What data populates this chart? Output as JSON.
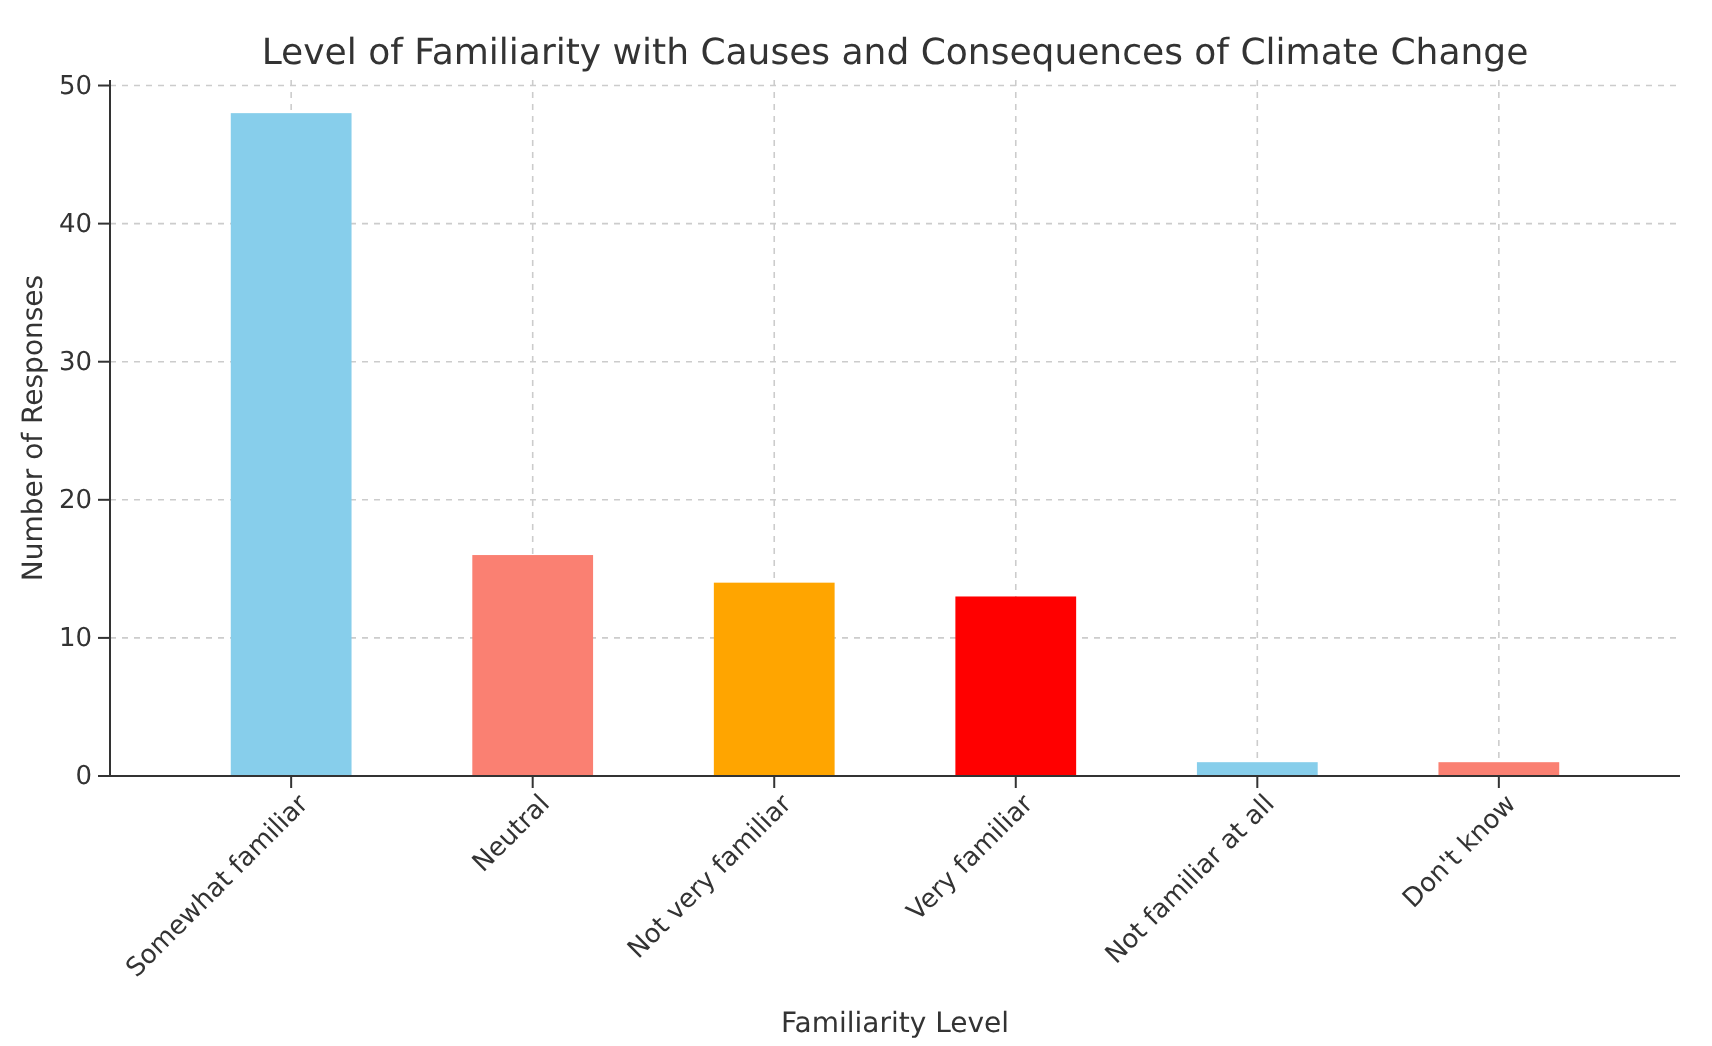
{
  "chart_data": {
    "type": "bar",
    "title": "Level of Familiarity with Causes and Consequences of Climate Change",
    "xlabel": "Familiarity Level",
    "ylabel": "Number of Responses",
    "categories": [
      "Somewhat familiar",
      "Neutral",
      "Not very familiar",
      "Very familiar",
      "Not familiar at all",
      "Don't know"
    ],
    "values": [
      48,
      16,
      14,
      13,
      1,
      1
    ],
    "colors": [
      "#87ceeb",
      "#fa8072",
      "#ffa500",
      "#ff0000",
      "#87ceeb",
      "#fa8072"
    ],
    "ylim": [
      0,
      50.4
    ],
    "yticks": [
      0,
      10,
      20,
      30,
      40,
      50
    ],
    "grid": true
  }
}
